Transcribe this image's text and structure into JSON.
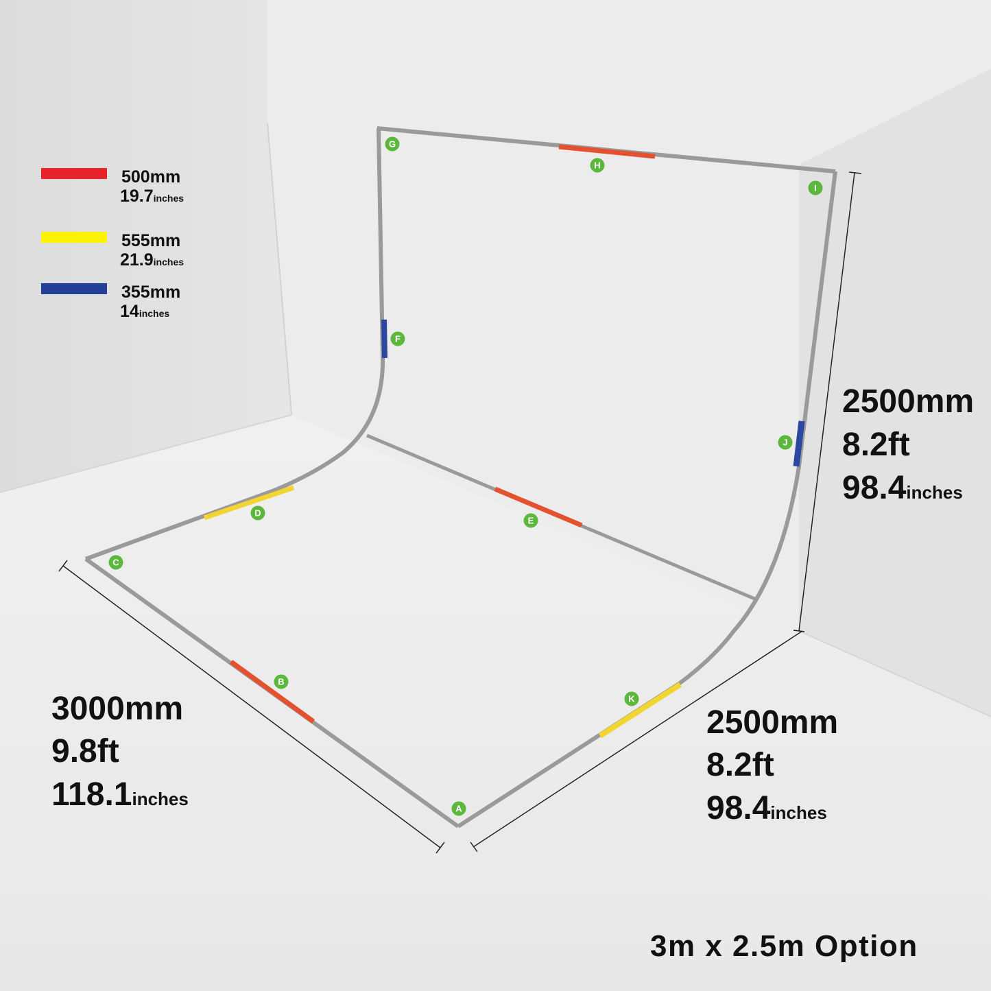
{
  "title": "3m x 2.5m Option",
  "legend": [
    {
      "color": "#e8232a",
      "mm": "500mm",
      "inches": "19.7",
      "unit": "inches"
    },
    {
      "color": "#fff200",
      "mm": "555mm",
      "inches": "21.9",
      "unit": "inches"
    },
    {
      "color": "#233f97",
      "mm": "355mm",
      "inches": "14",
      "unit": "inches"
    }
  ],
  "dimensions": {
    "height": {
      "mm": "2500mm",
      "ft": "8.2ft",
      "inches": "98.4",
      "unit": "inches"
    },
    "width": {
      "mm": "3000mm",
      "ft": "9.8ft",
      "inches": "118.1",
      "unit": "inches"
    },
    "depth": {
      "mm": "2500mm",
      "ft": "8.2ft",
      "inches": "98.4",
      "unit": "inches"
    }
  },
  "markers": [
    "A",
    "B",
    "C",
    "D",
    "E",
    "F",
    "G",
    "H",
    "I",
    "J",
    "K"
  ],
  "colors": {
    "marker": "#5cb83c",
    "frame": "#9a9a9a",
    "red": "#e4512f",
    "yellow": "#f2d531",
    "blue": "#2b47a0"
  }
}
